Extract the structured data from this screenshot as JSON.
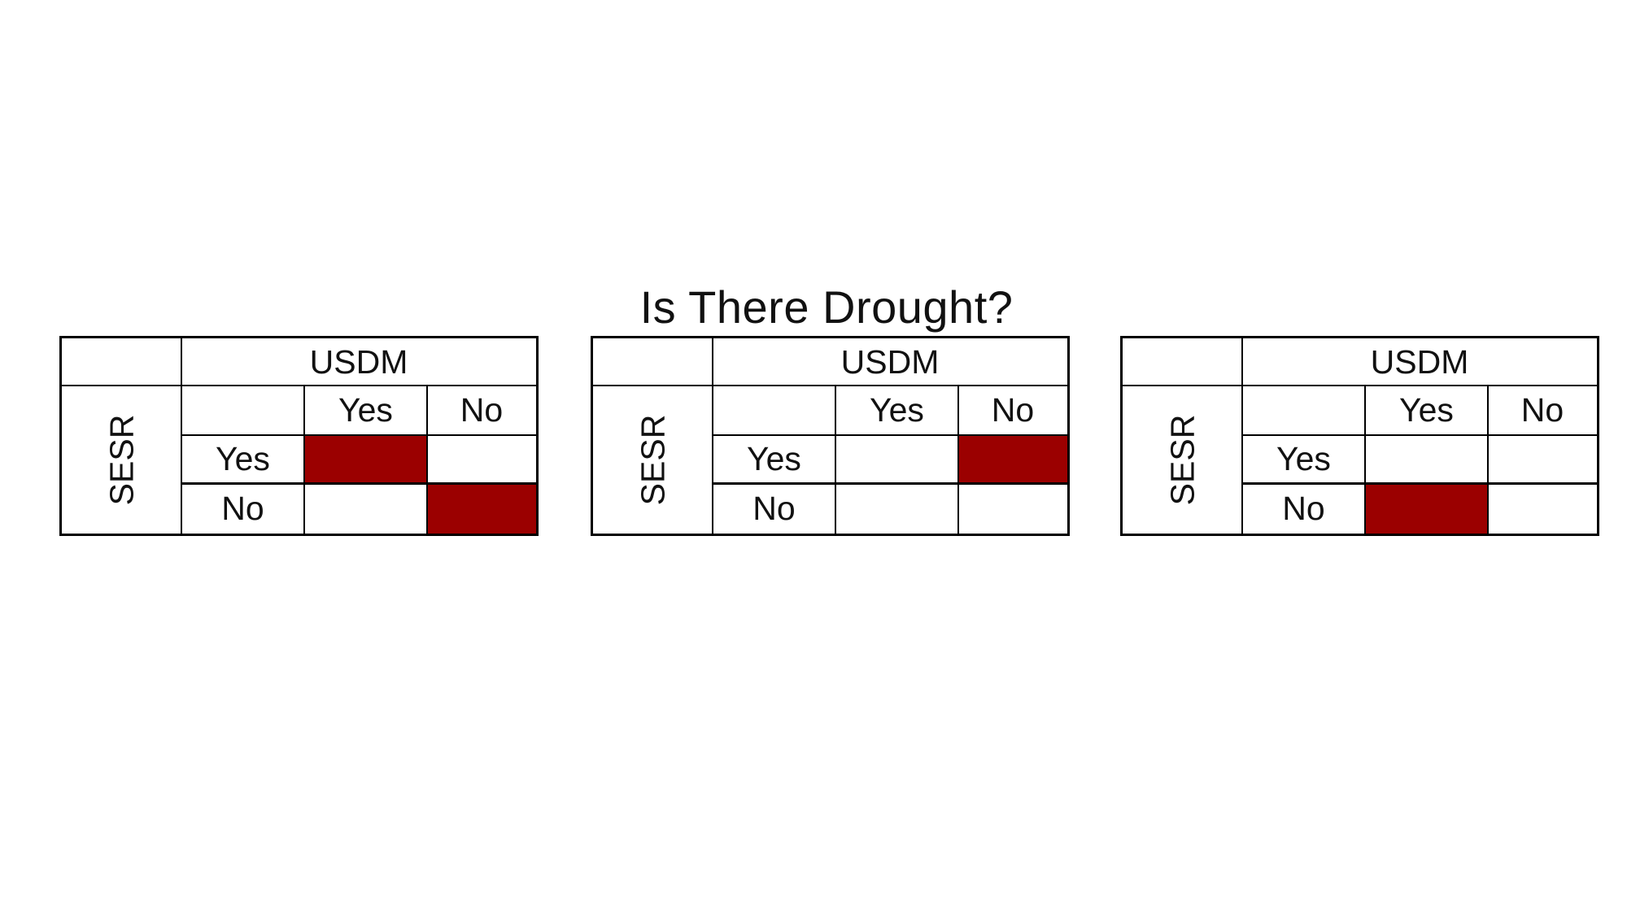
{
  "title": "Is There Drought?",
  "colors": {
    "highlight": "#9b0000",
    "grid": "#000000"
  },
  "matrices": [
    {
      "col_header": "USDM",
      "row_header": "SESR",
      "col_labels": [
        "Yes",
        "No"
      ],
      "row_labels": [
        "Yes",
        "No"
      ],
      "highlighted": [
        [
          true,
          false
        ],
        [
          false,
          true
        ]
      ]
    },
    {
      "col_header": "USDM",
      "row_header": "SESR",
      "col_labels": [
        "Yes",
        "No"
      ],
      "row_labels": [
        "Yes",
        "No"
      ],
      "highlighted": [
        [
          false,
          true
        ],
        [
          false,
          false
        ]
      ]
    },
    {
      "col_header": "USDM",
      "row_header": "SESR",
      "col_labels": [
        "Yes",
        "No"
      ],
      "row_labels": [
        "Yes",
        "No"
      ],
      "highlighted": [
        [
          false,
          false
        ],
        [
          true,
          false
        ]
      ]
    }
  ]
}
